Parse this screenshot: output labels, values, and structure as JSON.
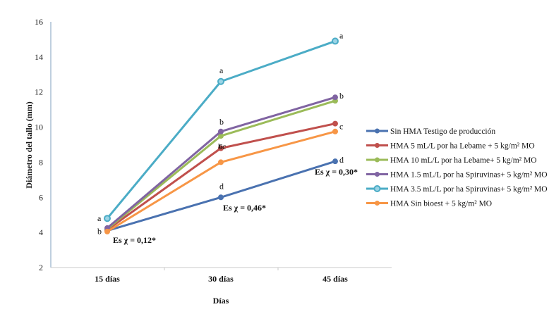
{
  "chart_data": {
    "type": "line",
    "title": "",
    "xlabel": "Días",
    "ylabel": "Diámetro del tallo (mm)",
    "categories": [
      "15 días",
      "30 días",
      "45 días"
    ],
    "ylim": [
      2,
      16
    ],
    "yticks": [
      2,
      4,
      6,
      8,
      10,
      12,
      14,
      16
    ],
    "grid": false,
    "legend_position": "right",
    "series": [
      {
        "name": "Sin HMA  Testigo de producción",
        "color": "#4a72b0",
        "values": [
          4.1,
          6.0,
          8.05
        ],
        "letters": [
          "b",
          "d",
          "d"
        ]
      },
      {
        "name": "HMA 5 mL/L por ha Lebame + 5 kg/m² MO",
        "color": "#c0504d",
        "values": [
          4.15,
          8.8,
          10.2
        ],
        "letters": [
          "",
          "bc",
          "c"
        ]
      },
      {
        "name": "HMA 10 mL/L por ha Lebame+ 5 kg/m² MO",
        "color": "#9bbb59",
        "values": [
          4.2,
          9.5,
          11.5
        ],
        "letters": [
          "",
          "",
          ""
        ]
      },
      {
        "name": "HMA 1.5 mL/L por ha Spiruvinas+ 5 kg/m² MO",
        "color": "#8064a2",
        "values": [
          4.25,
          9.75,
          11.7
        ],
        "letters": [
          "",
          "b",
          "b"
        ]
      },
      {
        "name": "HMA 3.5 mL/L por ha Spiruvinas+ 5 kg/m² MO",
        "color": "#4bacc6",
        "values": [
          4.8,
          12.6,
          14.9
        ],
        "letters": [
          "a",
          "a",
          "a"
        ]
      },
      {
        "name": "HMA Sin bioest + 5 kg/m² MO",
        "color": "#f79646",
        "values": [
          4.05,
          8.0,
          9.75
        ],
        "letters": [
          "",
          "c",
          ""
        ]
      }
    ],
    "annotations": [
      {
        "text": "Es χ = 0,12*",
        "category": "15 días"
      },
      {
        "text": "Es χ = 0,46*",
        "category": "30 días"
      },
      {
        "text": "Es χ = 0,30*",
        "category": "45 días"
      }
    ],
    "point_labels": [
      {
        "text": "a",
        "category": "15 días",
        "near_value": 4.8
      },
      {
        "text": "b",
        "category": "15 días",
        "near_value": 4.1
      },
      {
        "text": "a",
        "category": "30 días",
        "near_value": 12.6
      },
      {
        "text": "b",
        "category": "30 días",
        "near_value": 9.75
      },
      {
        "text": "bc",
        "category": "30 días",
        "near_value": 9.3
      },
      {
        "text": "c",
        "category": "30 días",
        "near_value": 8.4
      },
      {
        "text": "d",
        "category": "30 días",
        "near_value": 6.0
      },
      {
        "text": "a",
        "category": "45 días",
        "near_value": 14.9
      },
      {
        "text": "b",
        "category": "45 días",
        "near_value": 11.7
      },
      {
        "text": "c",
        "category": "45 días",
        "near_value": 10.2
      },
      {
        "text": "d",
        "category": "45 días",
        "near_value": 8.05
      }
    ]
  }
}
